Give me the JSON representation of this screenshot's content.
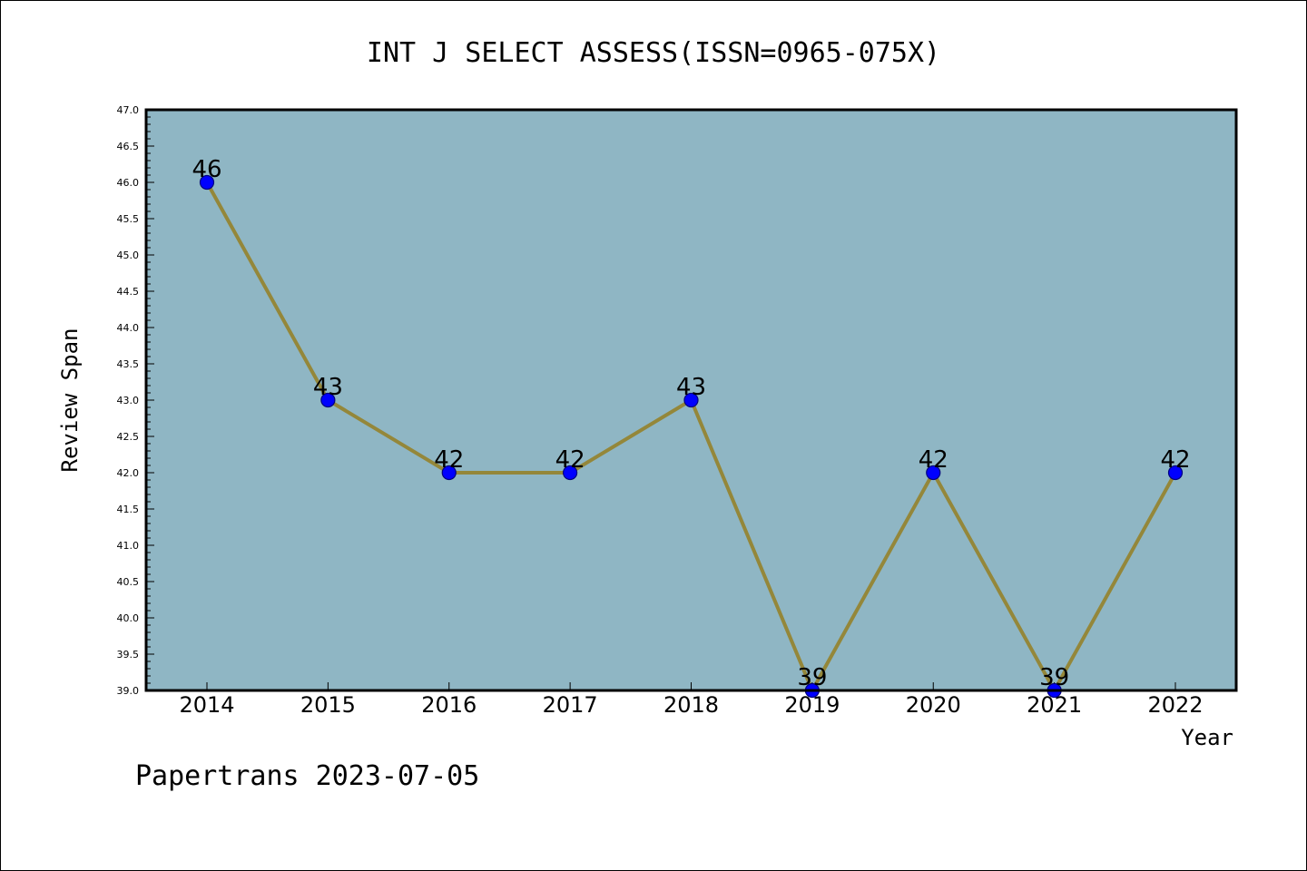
{
  "chart_data": {
    "type": "line",
    "title": "INT J SELECT ASSESS(ISSN=0965-075X)",
    "xlabel": "Year",
    "ylabel": "Review Span",
    "footer": "Papertrans 2023-07-05",
    "x": [
      "2014",
      "2015",
      "2016",
      "2017",
      "2018",
      "2019",
      "2020",
      "2021",
      "2022"
    ],
    "values": [
      46,
      43,
      42,
      42,
      43,
      39,
      42,
      39,
      42
    ],
    "data_labels": [
      "46",
      "43",
      "42",
      "42",
      "43",
      "39",
      "42",
      "39",
      "42"
    ],
    "ylim": [
      39.0,
      47.0
    ],
    "yticks": [
      "39.0",
      "39.5",
      "40.0",
      "40.5",
      "41.0",
      "41.5",
      "42.0",
      "42.5",
      "43.0",
      "43.5",
      "44.0",
      "44.5",
      "45.0",
      "45.5",
      "46.0",
      "46.5",
      "47.0"
    ],
    "grid": false,
    "legend": "none",
    "colors": {
      "plot_background": "#8fb6c4",
      "line": "#94873a",
      "marker": "#0000ff",
      "marker_edge": "#000080",
      "axes": "#000000"
    }
  }
}
